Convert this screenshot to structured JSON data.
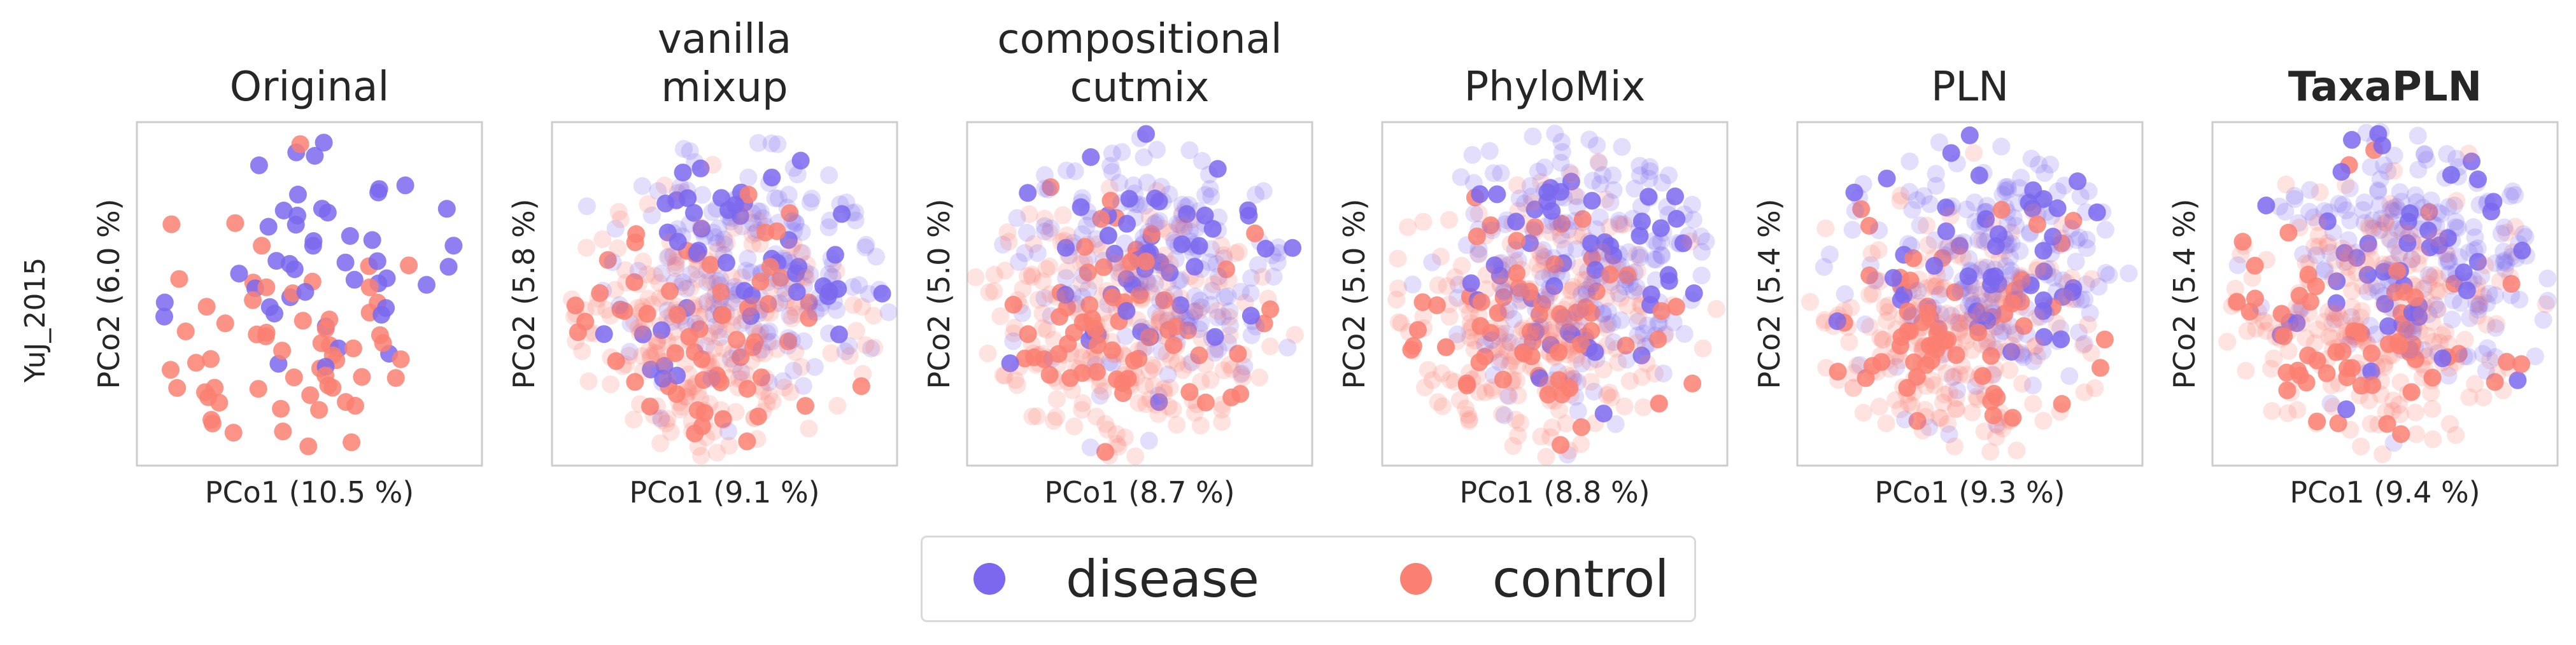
{
  "figure": {
    "row_label": "YuJ_2015",
    "colors": {
      "disease": "#7b68ee",
      "control": "#fa8072",
      "frame": "#cccccc"
    }
  },
  "chart_data": [
    {
      "type": "scatter",
      "title_lines": [
        "Original"
      ],
      "title_bold": false,
      "xlabel": "PCo1 (10.5 %)",
      "ylabel": "PCo2 (6.0 %)",
      "series": [
        {
          "name": "disease"
        },
        {
          "name": "control"
        }
      ],
      "seed": 11,
      "n_disease": 45,
      "n_control": 60,
      "synthetic": 0,
      "spread": 0.78
    },
    {
      "type": "scatter",
      "title_lines": [
        "vanilla",
        "mixup"
      ],
      "title_bold": false,
      "xlabel": "PCo1 (9.1 %)",
      "ylabel": "PCo2 (5.8 %)",
      "series": [
        {
          "name": "disease"
        },
        {
          "name": "control"
        }
      ],
      "seed": 23,
      "n_disease": 45,
      "n_control": 60,
      "synthetic": 420,
      "spread": 0.72
    },
    {
      "type": "scatter",
      "title_lines": [
        "compositional",
        "cutmix"
      ],
      "title_bold": false,
      "xlabel": "PCo1 (8.7 %)",
      "ylabel": "PCo2 (5.0 %)",
      "series": [
        {
          "name": "disease"
        },
        {
          "name": "control"
        }
      ],
      "seed": 37,
      "n_disease": 45,
      "n_control": 60,
      "synthetic": 420,
      "spread": 0.72
    },
    {
      "type": "scatter",
      "title_lines": [
        "PhyloMix"
      ],
      "title_bold": false,
      "xlabel": "PCo1 (8.8 %)",
      "ylabel": "PCo2 (5.0 %)",
      "series": [
        {
          "name": "disease"
        },
        {
          "name": "control"
        }
      ],
      "seed": 41,
      "n_disease": 45,
      "n_control": 60,
      "synthetic": 460,
      "spread": 0.75
    },
    {
      "type": "scatter",
      "title_lines": [
        "PLN"
      ],
      "title_bold": false,
      "xlabel": "PCo1 (9.3 %)",
      "ylabel": "PCo2 (5.4 %)",
      "series": [
        {
          "name": "disease"
        },
        {
          "name": "control"
        }
      ],
      "seed": 53,
      "n_disease": 45,
      "n_control": 60,
      "synthetic": 420,
      "spread": 0.74
    },
    {
      "type": "scatter",
      "title_lines": [
        "TaxaPLN"
      ],
      "title_bold": true,
      "xlabel": "PCo1 (9.4 %)",
      "ylabel": "PCo2 (5.4 %)",
      "series": [
        {
          "name": "disease"
        },
        {
          "name": "control"
        }
      ],
      "seed": 67,
      "n_disease": 45,
      "n_control": 60,
      "synthetic": 420,
      "spread": 0.72
    }
  ],
  "legend": {
    "items": [
      {
        "label": "disease",
        "color": "#7b68ee"
      },
      {
        "label": "control",
        "color": "#fa8072"
      }
    ]
  }
}
